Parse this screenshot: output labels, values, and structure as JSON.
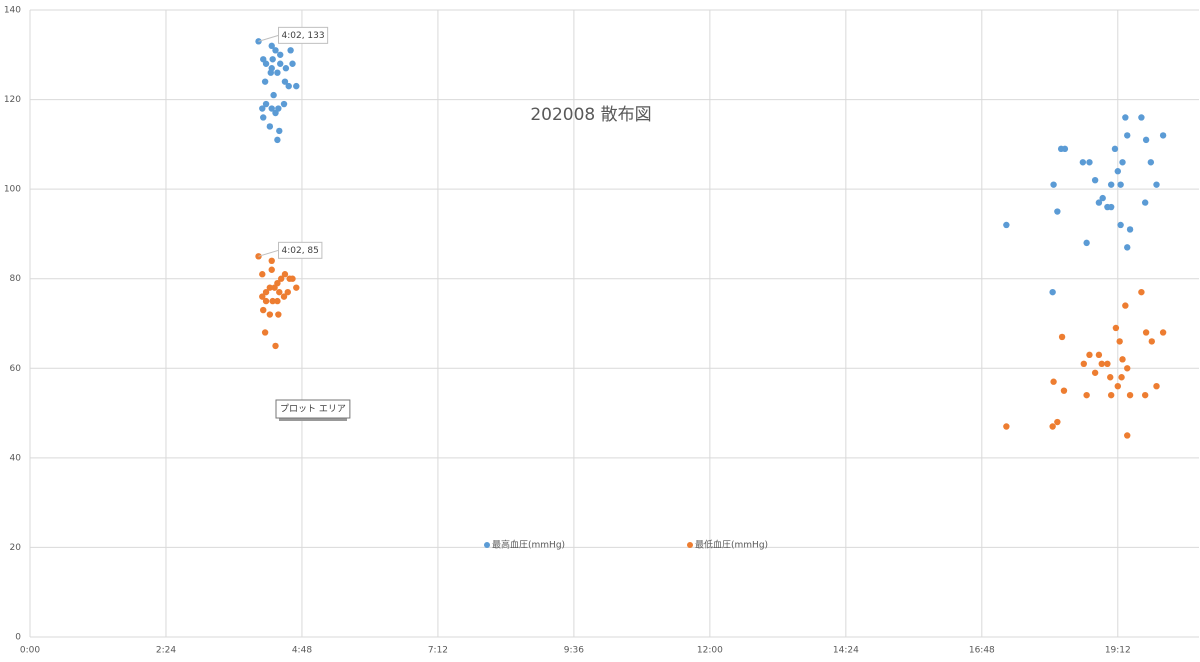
{
  "chart_data": {
    "type": "scatter",
    "title": "202008 散布図",
    "xlim": [
      0,
      1238
    ],
    "ylim": [
      0,
      140
    ],
    "xticks": [
      {
        "value": 0,
        "label": "0:00"
      },
      {
        "value": 144,
        "label": "2:24"
      },
      {
        "value": 288,
        "label": "4:48"
      },
      {
        "value": 432,
        "label": "7:12"
      },
      {
        "value": 576,
        "label": "9:36"
      },
      {
        "value": 720,
        "label": "12:00"
      },
      {
        "value": 864,
        "label": "14:24"
      },
      {
        "value": 1008,
        "label": "16:48"
      },
      {
        "value": 1152,
        "label": "19:12"
      }
    ],
    "yticks": [
      0,
      20,
      40,
      60,
      80,
      100,
      120,
      140
    ],
    "grid": true,
    "annotations": [
      "4:02, 133",
      "4:02, 85"
    ],
    "tooltip": "プロット エリア",
    "series": [
      {
        "name": "最高血圧(mmHg)",
        "color": "#5b9bd5",
        "x": [
          242,
          256,
          276,
          260,
          265,
          247,
          257,
          250,
          265,
          278,
          256,
          271,
          255,
          262,
          249,
          270,
          274,
          282,
          258,
          269,
          246,
          250,
          256,
          263,
          260,
          247,
          254,
          264,
          262,
          1034,
          1083,
          1084,
          1088,
          1092,
          1096,
          1115,
          1122,
          1119,
          1128,
          1132,
          1136,
          1141,
          1145,
          1145,
          1149,
          1152,
          1155,
          1157,
          1155,
          1160,
          1162,
          1165,
          1162,
          1177,
          1182,
          1181,
          1187,
          1193,
          1200
        ],
        "values": [
          133,
          132,
          131,
          131,
          130,
          129,
          129,
          128,
          128,
          128,
          127,
          127,
          126,
          126,
          124,
          124,
          123,
          123,
          121,
          119,
          118,
          119,
          118,
          118,
          117,
          116,
          114,
          113,
          111,
          92,
          77,
          101,
          95,
          109,
          109,
          106,
          106,
          88,
          102,
          97,
          98,
          96,
          96,
          101,
          109,
          104,
          101,
          106,
          92,
          116,
          112,
          91,
          87,
          116,
          111,
          97,
          106,
          101,
          112
        ]
      },
      {
        "name": "最低血圧(mmHg)",
        "color": "#ed7d31",
        "x": [
          242,
          246,
          256,
          256,
          270,
          275,
          262,
          254,
          259,
          282,
          250,
          264,
          273,
          246,
          269,
          250,
          257,
          262,
          247,
          254,
          263,
          249,
          260,
          266,
          278,
          1034,
          1084,
          1083,
          1088,
          1093,
          1095,
          1116,
          1119,
          1122,
          1128,
          1132,
          1135,
          1141,
          1144,
          1145,
          1150,
          1152,
          1154,
          1157,
          1156,
          1160,
          1162,
          1165,
          1162,
          1177,
          1181,
          1182,
          1188,
          1193,
          1200
        ],
        "values": [
          85,
          81,
          84,
          82,
          81,
          80,
          79,
          78,
          78,
          78,
          77,
          77,
          77,
          76,
          76,
          75,
          75,
          75,
          73,
          72,
          72,
          68,
          65,
          80,
          80,
          47,
          57,
          47,
          48,
          67,
          55,
          61,
          54,
          63,
          59,
          63,
          61,
          61,
          58,
          54,
          69,
          56,
          66,
          62,
          58,
          74,
          60,
          54,
          45,
          77,
          54,
          68,
          66,
          56,
          68
        ]
      }
    ]
  }
}
